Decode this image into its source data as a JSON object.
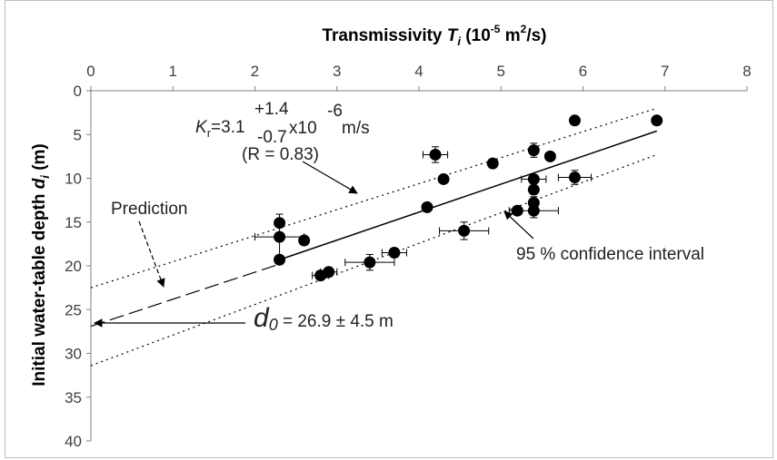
{
  "chart_data": {
    "type": "scatter",
    "title": "",
    "xlabel": {
      "prefix": "Transmissivity ",
      "var": "T",
      "sub": "i",
      "unit_open": " (10",
      "unit_exp1": "-5",
      "unit_mid": " m",
      "unit_exp2": "2",
      "unit_close": "/s)"
    },
    "ylabel": {
      "prefix": "Initial water-table depth ",
      "var": "d",
      "sub": "i",
      "unit": " (m)"
    },
    "xlim": [
      0,
      8
    ],
    "ylim": [
      0,
      40
    ],
    "y_inverted": true,
    "x_axis_position": "top",
    "x_ticks": [
      "0",
      "1",
      "2",
      "3",
      "4",
      "5",
      "6",
      "7",
      "8"
    ],
    "y_ticks": [
      "0",
      "5",
      "10",
      "15",
      "20",
      "25",
      "30",
      "35",
      "40"
    ],
    "grid": false,
    "points": [
      {
        "x": 2.3,
        "y": 15.1
      },
      {
        "x": 2.3,
        "y": 16.7,
        "xerr": 0.3,
        "yerr": 2.6
      },
      {
        "x": 2.3,
        "y": 19.3
      },
      {
        "x": 2.6,
        "y": 17.1
      },
      {
        "x": 2.8,
        "y": 21.1,
        "xerr": 0.1,
        "yerr": 0.5
      },
      {
        "x": 2.9,
        "y": 20.7,
        "xerr": 0.1
      },
      {
        "x": 3.4,
        "y": 19.6,
        "xerr": 0.3,
        "yerr": 0.9
      },
      {
        "x": 3.7,
        "y": 18.5,
        "xerr": 0.15,
        "yerr": 0.5
      },
      {
        "x": 4.1,
        "y": 13.3
      },
      {
        "x": 4.2,
        "y": 7.3,
        "xerr": 0.15,
        "yerr": 0.9
      },
      {
        "x": 4.3,
        "y": 10.1
      },
      {
        "x": 4.55,
        "y": 16.0,
        "xerr": 0.3,
        "yerr": 1.0
      },
      {
        "x": 4.9,
        "y": 8.3
      },
      {
        "x": 5.2,
        "y": 13.7
      },
      {
        "x": 5.4,
        "y": 6.8,
        "yerr": 0.8
      },
      {
        "x": 5.4,
        "y": 10.1,
        "xerr": 0.15,
        "yerr": 0.5
      },
      {
        "x": 5.4,
        "y": 11.3
      },
      {
        "x": 5.4,
        "y": 12.8,
        "yerr": 0.7
      },
      {
        "x": 5.4,
        "y": 13.7,
        "xerr": 0.3,
        "yerr": 0.8
      },
      {
        "x": 5.6,
        "y": 7.5
      },
      {
        "x": 5.9,
        "y": 3.4
      },
      {
        "x": 5.9,
        "y": 9.9,
        "xerr": 0.2,
        "yerr": 0.8
      },
      {
        "x": 6.9,
        "y": 3.4,
        "yerr": 0.5
      }
    ],
    "fit_line": {
      "x": [
        2.3,
        6.9
      ],
      "y": [
        19.3,
        4.6
      ]
    },
    "prediction_line": {
      "x": [
        0,
        2.3
      ],
      "y": [
        26.9,
        19.8
      ]
    },
    "ci_upper": {
      "x": [
        0,
        6.9
      ],
      "y": [
        22.5,
        2.0
      ]
    },
    "ci_lower": {
      "x": [
        0,
        6.9
      ],
      "y": [
        31.4,
        7.3
      ]
    },
    "annotations": {
      "kr": {
        "var": "K",
        "sub": "r",
        "eq": "=3.1",
        "plus": "+1.4",
        "minus": "-0.7",
        "times": "x10",
        "exp": "-6",
        "unit": " m/s"
      },
      "r_value": "(R = 0.83)",
      "prediction": "Prediction",
      "ci": "95 % confidence interval",
      "d0": {
        "var": "d",
        "sub": "0",
        "text": " = 26.9 ± 4.5 m"
      }
    }
  }
}
